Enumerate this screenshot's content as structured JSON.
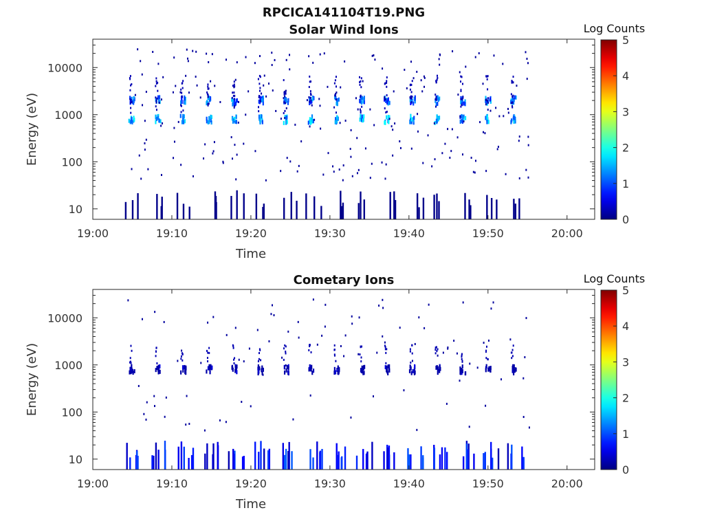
{
  "page_title": "RPCICA141104T19.PNG",
  "chart_data": [
    {
      "type": "heatmap",
      "title": "Solar Wind Ions",
      "xlabel": "Time",
      "ylabel": "Energy (eV)",
      "x_ticks": [
        "19:00",
        "19:10",
        "19:20",
        "19:30",
        "19:40",
        "19:50",
        "20:00"
      ],
      "y_ticks": [
        "10",
        "100",
        "1000",
        "10000"
      ],
      "y_scale": "log",
      "ylim": [
        6,
        40000
      ],
      "colorbar": {
        "label": "Log Counts",
        "ticks": [
          "0",
          "1",
          "2",
          "3",
          "4",
          "5"
        ],
        "range": [
          0,
          5
        ]
      },
      "sweep_start_minutes": [
        4.7,
        8.0,
        11.2,
        14.5,
        17.7,
        21.0,
        24.2,
        27.4,
        30.6,
        33.8,
        37.0,
        40.2,
        43.4,
        46.6,
        49.8,
        53.0
      ],
      "sweep_peaks": [
        {
          "energy_eV": 2000,
          "log_counts": 1.6
        },
        {
          "energy_eV": 800,
          "log_counts": 1.9
        }
      ],
      "low_energy_band_eV": [
        6,
        25
      ],
      "data_end_minute": 54.5
    },
    {
      "type": "heatmap",
      "title": "Cometary Ions",
      "xlabel": "Time",
      "ylabel": "Energy (eV)",
      "x_ticks": [
        "19:00",
        "19:10",
        "19:20",
        "19:30",
        "19:40",
        "19:50",
        "20:00"
      ],
      "y_ticks": [
        "10",
        "100",
        "1000",
        "10000"
      ],
      "y_scale": "log",
      "ylim": [
        6,
        40000
      ],
      "colorbar": {
        "label": "Log Counts",
        "ticks": [
          "0",
          "1",
          "2",
          "3",
          "4",
          "5"
        ],
        "range": [
          0,
          5
        ]
      },
      "sweep_start_minutes": [
        4.7,
        8.0,
        11.2,
        14.5,
        17.7,
        21.0,
        24.2,
        27.4,
        30.6,
        33.8,
        37.0,
        40.2,
        43.4,
        46.6,
        49.8,
        53.0
      ],
      "sweep_peaks": [
        {
          "energy_eV": 800,
          "log_counts": 0.5
        }
      ],
      "low_energy_band_eV": [
        6,
        25
      ],
      "data_end_minute": 54.5
    }
  ]
}
